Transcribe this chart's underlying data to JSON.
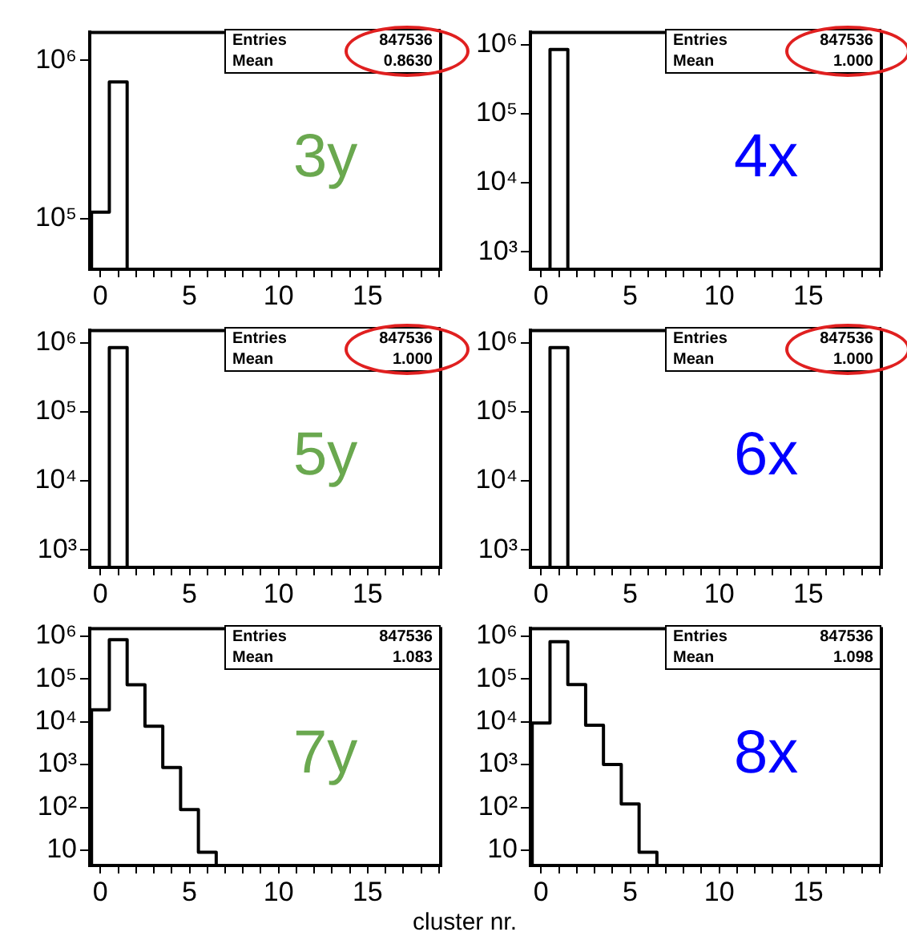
{
  "chart_data": [
    {
      "type": "histogram",
      "bins": [
        -0.5,
        0.5,
        1.5
      ],
      "values": [
        110000,
        730000
      ],
      "color": "#000000",
      "xlim": [
        -0.6,
        19.1
      ],
      "xticks": [
        0,
        {
          "value": 1,
          "label": null
        },
        {
          "value": 2,
          "label": null
        },
        {
          "value": 3,
          "label": null
        },
        {
          "value": 4,
          "label": null
        },
        5,
        {
          "value": 6,
          "label": null
        },
        {
          "value": 7,
          "label": null
        },
        {
          "value": 8,
          "label": null
        },
        {
          "value": 9,
          "label": null
        },
        10,
        {
          "value": 11,
          "label": null
        },
        {
          "value": 12,
          "label": null
        },
        {
          "value": 13,
          "label": null
        },
        {
          "value": 14,
          "label": null
        },
        15,
        {
          "value": 16,
          "label": null
        },
        {
          "value": 17,
          "label": null
        },
        {
          "value": 18,
          "label": null
        },
        {
          "value": 19,
          "label": null
        }
      ],
      "ylim": [
        48000,
        1500000
      ],
      "yticks": [
        {
          "value": 100000,
          "label": "10⁵"
        },
        {
          "value": 1000000,
          "label": "10⁶"
        }
      ],
      "log": "y",
      "annotations": [
        "Entries",
        "847536",
        "Mean",
        "0.8630",
        "3y"
      ]
    },
    {
      "type": "histogram",
      "bins": [
        0.5,
        1.5
      ],
      "values": [
        850000
      ],
      "color": "#000000",
      "xlim": [
        -0.6,
        19.1
      ],
      "xticks": [
        0,
        {
          "value": 1,
          "label": null
        },
        {
          "value": 2,
          "label": null
        },
        {
          "value": 3,
          "label": null
        },
        {
          "value": 4,
          "label": null
        },
        5,
        {
          "value": 6,
          "label": null
        },
        {
          "value": 7,
          "label": null
        },
        {
          "value": 8,
          "label": null
        },
        {
          "value": 9,
          "label": null
        },
        10,
        {
          "value": 11,
          "label": null
        },
        {
          "value": 12,
          "label": null
        },
        {
          "value": 13,
          "label": null
        },
        {
          "value": 14,
          "label": null
        },
        15,
        {
          "value": 16,
          "label": null
        },
        {
          "value": 17,
          "label": null
        },
        {
          "value": 18,
          "label": null
        },
        {
          "value": 19,
          "label": null
        }
      ],
      "ylim": [
        560,
        1500000
      ],
      "yticks": [
        {
          "value": 1000,
          "label": "10³"
        },
        {
          "value": 10000,
          "label": "10⁴"
        },
        {
          "value": 100000,
          "label": "10⁵"
        },
        {
          "value": 1000000,
          "label": "10⁶"
        }
      ],
      "log": "y",
      "annotations": [
        "Entries",
        "847536",
        "Mean",
        "1.000",
        "4x"
      ]
    },
    {
      "type": "histogram",
      "bins": [
        0.5,
        1.5
      ],
      "values": [
        850000
      ],
      "color": "#000000",
      "xlim": [
        -0.6,
        19.1
      ],
      "xticks": [
        0,
        {
          "value": 1,
          "label": null
        },
        {
          "value": 2,
          "label": null
        },
        {
          "value": 3,
          "label": null
        },
        {
          "value": 4,
          "label": null
        },
        5,
        {
          "value": 6,
          "label": null
        },
        {
          "value": 7,
          "label": null
        },
        {
          "value": 8,
          "label": null
        },
        {
          "value": 9,
          "label": null
        },
        10,
        {
          "value": 11,
          "label": null
        },
        {
          "value": 12,
          "label": null
        },
        {
          "value": 13,
          "label": null
        },
        {
          "value": 14,
          "label": null
        },
        15,
        {
          "value": 16,
          "label": null
        },
        {
          "value": 17,
          "label": null
        },
        {
          "value": 18,
          "label": null
        },
        {
          "value": 19,
          "label": null
        }
      ],
      "ylim": [
        560,
        1500000
      ],
      "yticks": [
        {
          "value": 1000,
          "label": "10³"
        },
        {
          "value": 10000,
          "label": "10⁴"
        },
        {
          "value": 100000,
          "label": "10⁵"
        },
        {
          "value": 1000000,
          "label": "10⁶"
        }
      ],
      "log": "y",
      "annotations": [
        "Entries",
        "847536",
        "Mean",
        "1.000",
        "5y"
      ]
    },
    {
      "type": "histogram",
      "bins": [
        0.5,
        1.5
      ],
      "values": [
        850000
      ],
      "color": "#000000",
      "xlim": [
        -0.6,
        19.1
      ],
      "xticks": [
        0,
        {
          "value": 1,
          "label": null
        },
        {
          "value": 2,
          "label": null
        },
        {
          "value": 3,
          "label": null
        },
        {
          "value": 4,
          "label": null
        },
        5,
        {
          "value": 6,
          "label": null
        },
        {
          "value": 7,
          "label": null
        },
        {
          "value": 8,
          "label": null
        },
        {
          "value": 9,
          "label": null
        },
        10,
        {
          "value": 11,
          "label": null
        },
        {
          "value": 12,
          "label": null
        },
        {
          "value": 13,
          "label": null
        },
        {
          "value": 14,
          "label": null
        },
        15,
        {
          "value": 16,
          "label": null
        },
        {
          "value": 17,
          "label": null
        },
        {
          "value": 18,
          "label": null
        },
        {
          "value": 19,
          "label": null
        }
      ],
      "ylim": [
        560,
        1500000
      ],
      "yticks": [
        {
          "value": 1000,
          "label": "10³"
        },
        {
          "value": 10000,
          "label": "10⁴"
        },
        {
          "value": 100000,
          "label": "10⁵"
        },
        {
          "value": 1000000,
          "label": "10⁶"
        }
      ],
      "log": "y",
      "annotations": [
        "Entries",
        "847536",
        "Mean",
        "1.000",
        "6x"
      ]
    },
    {
      "type": "histogram",
      "bins": [
        -0.5,
        0.5,
        1.5,
        2.5,
        3.5,
        4.5,
        5.5,
        6.5
      ],
      "values": [
        19000,
        830000,
        73000,
        7900,
        850,
        89,
        9
      ],
      "color": "#000000",
      "xlim": [
        -0.6,
        19.1
      ],
      "xticks": [
        0,
        {
          "value": 1,
          "label": null
        },
        {
          "value": 2,
          "label": null
        },
        {
          "value": 3,
          "label": null
        },
        {
          "value": 4,
          "label": null
        },
        5,
        {
          "value": 6,
          "label": null
        },
        {
          "value": 7,
          "label": null
        },
        {
          "value": 8,
          "label": null
        },
        {
          "value": 9,
          "label": null
        },
        10,
        {
          "value": 11,
          "label": null
        },
        {
          "value": 12,
          "label": null
        },
        {
          "value": 13,
          "label": null
        },
        {
          "value": 14,
          "label": null
        },
        15,
        {
          "value": 16,
          "label": null
        },
        {
          "value": 17,
          "label": null
        },
        {
          "value": 18,
          "label": null
        },
        {
          "value": 19,
          "label": null
        }
      ],
      "ylim": [
        4.4,
        1500000
      ],
      "yticks": [
        10,
        {
          "value": 100,
          "label": "10²"
        },
        {
          "value": 1000,
          "label": "10³"
        },
        {
          "value": 10000,
          "label": "10⁴"
        },
        {
          "value": 100000,
          "label": "10⁵"
        },
        {
          "value": 1000000,
          "label": "10⁶"
        }
      ],
      "log": "y",
      "annotations": [
        "Entries",
        "847536",
        "Mean",
        "1.083",
        "7y"
      ]
    },
    {
      "type": "histogram",
      "bins": [
        -0.5,
        0.5,
        1.5,
        2.5,
        3.5,
        4.5,
        5.5,
        6.5
      ],
      "values": [
        9300,
        740000,
        74000,
        8300,
        1000,
        120,
        9
      ],
      "color": "#000000",
      "xlim": [
        -0.6,
        19.1
      ],
      "xticks": [
        0,
        {
          "value": 1,
          "label": null
        },
        {
          "value": 2,
          "label": null
        },
        {
          "value": 3,
          "label": null
        },
        {
          "value": 4,
          "label": null
        },
        5,
        {
          "value": 6,
          "label": null
        },
        {
          "value": 7,
          "label": null
        },
        {
          "value": 8,
          "label": null
        },
        {
          "value": 9,
          "label": null
        },
        10,
        {
          "value": 11,
          "label": null
        },
        {
          "value": 12,
          "label": null
        },
        {
          "value": 13,
          "label": null
        },
        {
          "value": 14,
          "label": null
        },
        15,
        {
          "value": 16,
          "label": null
        },
        {
          "value": 17,
          "label": null
        },
        {
          "value": 18,
          "label": null
        },
        {
          "value": 19,
          "label": null
        }
      ],
      "ylim": [
        4.4,
        1500000
      ],
      "yticks": [
        10,
        {
          "value": 100,
          "label": "10²"
        },
        {
          "value": 1000,
          "label": "10³"
        },
        {
          "value": 10000,
          "label": "10⁴"
        },
        {
          "value": 100000,
          "label": "10⁵"
        },
        {
          "value": 1000000,
          "label": "10⁶"
        }
      ],
      "log": "y",
      "xlabel": "cluster nr.",
      "annotations": [
        "Entries",
        "847536",
        "Mean",
        "1.098",
        "8x"
      ]
    }
  ]
}
